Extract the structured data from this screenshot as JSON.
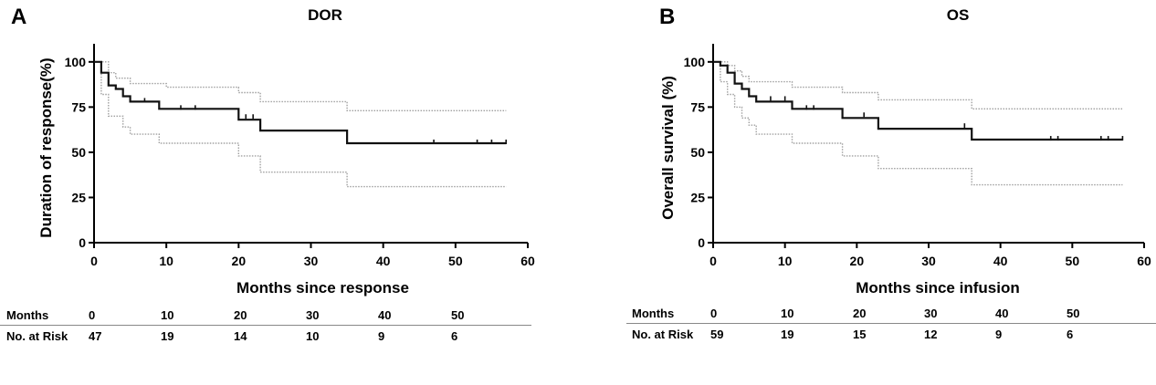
{
  "chart_data": [
    {
      "panel_letter": "A",
      "type": "line",
      "subtype": "kaplan-meier",
      "title": "DOR",
      "xlabel": "Months since response",
      "ylabel": "Duration of response(%)",
      "xlim": [
        0,
        60
      ],
      "ylim": [
        0,
        110
      ],
      "xticks": [
        0,
        10,
        20,
        30,
        40,
        50,
        60
      ],
      "yticks": [
        0,
        25,
        50,
        75,
        100
      ],
      "estimate": [
        [
          0,
          100
        ],
        [
          1,
          100
        ],
        [
          1,
          94
        ],
        [
          2,
          94
        ],
        [
          2,
          87
        ],
        [
          3,
          87
        ],
        [
          3,
          85
        ],
        [
          4,
          85
        ],
        [
          4,
          81
        ],
        [
          5,
          81
        ],
        [
          5,
          78
        ],
        [
          9,
          78
        ],
        [
          9,
          74
        ],
        [
          20,
          74
        ],
        [
          20,
          68
        ],
        [
          23,
          68
        ],
        [
          23,
          62
        ],
        [
          35,
          62
        ],
        [
          35,
          55
        ],
        [
          57,
          55
        ]
      ],
      "upper_ci": [
        [
          0,
          100
        ],
        [
          2,
          100
        ],
        [
          2,
          94
        ],
        [
          3,
          94
        ],
        [
          3,
          91
        ],
        [
          5,
          91
        ],
        [
          5,
          88
        ],
        [
          10,
          88
        ],
        [
          10,
          86
        ],
        [
          20,
          86
        ],
        [
          20,
          83
        ],
        [
          23,
          83
        ],
        [
          23,
          78
        ],
        [
          35,
          78
        ],
        [
          35,
          73
        ],
        [
          57,
          73
        ]
      ],
      "lower_ci": [
        [
          0,
          100
        ],
        [
          1,
          100
        ],
        [
          1,
          82
        ],
        [
          2,
          82
        ],
        [
          2,
          70
        ],
        [
          4,
          70
        ],
        [
          4,
          64
        ],
        [
          5,
          64
        ],
        [
          5,
          60
        ],
        [
          9,
          60
        ],
        [
          9,
          55
        ],
        [
          20,
          55
        ],
        [
          20,
          48
        ],
        [
          23,
          48
        ],
        [
          23,
          39
        ],
        [
          35,
          39
        ],
        [
          35,
          31
        ],
        [
          57,
          31
        ]
      ],
      "censor_marks": [
        [
          7,
          78
        ],
        [
          12,
          74
        ],
        [
          14,
          74
        ],
        [
          21,
          69
        ],
        [
          22,
          69
        ],
        [
          47,
          55
        ],
        [
          53,
          55
        ],
        [
          55,
          55
        ],
        [
          57,
          55
        ]
      ],
      "risk_table": {
        "header_label": "Months",
        "row_label": "No. at Risk",
        "months": [
          "0",
          "10",
          "20",
          "30",
          "40",
          "50"
        ],
        "at_risk": [
          "47",
          "19",
          "14",
          "10",
          "9",
          "6"
        ]
      }
    },
    {
      "panel_letter": "B",
      "type": "line",
      "subtype": "kaplan-meier",
      "title": "OS",
      "xlabel": "Months since infusion",
      "ylabel": "Overall survival (%)",
      "xlim": [
        0,
        60
      ],
      "ylim": [
        0,
        110
      ],
      "xticks": [
        0,
        10,
        20,
        30,
        40,
        50,
        60
      ],
      "yticks": [
        0,
        25,
        50,
        75,
        100
      ],
      "estimate": [
        [
          0,
          100
        ],
        [
          1,
          100
        ],
        [
          1,
          98
        ],
        [
          2,
          98
        ],
        [
          2,
          94
        ],
        [
          3,
          94
        ],
        [
          3,
          88
        ],
        [
          4,
          88
        ],
        [
          4,
          85
        ],
        [
          5,
          85
        ],
        [
          5,
          81
        ],
        [
          6,
          81
        ],
        [
          6,
          78
        ],
        [
          11,
          78
        ],
        [
          11,
          74
        ],
        [
          18,
          74
        ],
        [
          18,
          69
        ],
        [
          23,
          69
        ],
        [
          23,
          63
        ],
        [
          36,
          63
        ],
        [
          36,
          57
        ],
        [
          57,
          57
        ]
      ],
      "upper_ci": [
        [
          0,
          100
        ],
        [
          2,
          100
        ],
        [
          2,
          98
        ],
        [
          3,
          98
        ],
        [
          3,
          95
        ],
        [
          4,
          95
        ],
        [
          4,
          92
        ],
        [
          5,
          92
        ],
        [
          5,
          89
        ],
        [
          11,
          89
        ],
        [
          11,
          86
        ],
        [
          18,
          86
        ],
        [
          18,
          83
        ],
        [
          23,
          83
        ],
        [
          23,
          79
        ],
        [
          36,
          79
        ],
        [
          36,
          74
        ],
        [
          57,
          74
        ]
      ],
      "lower_ci": [
        [
          0,
          100
        ],
        [
          1,
          100
        ],
        [
          1,
          89
        ],
        [
          2,
          89
        ],
        [
          2,
          82
        ],
        [
          3,
          82
        ],
        [
          3,
          75
        ],
        [
          4,
          75
        ],
        [
          4,
          69
        ],
        [
          5,
          69
        ],
        [
          5,
          65
        ],
        [
          6,
          65
        ],
        [
          6,
          60
        ],
        [
          11,
          60
        ],
        [
          11,
          55
        ],
        [
          18,
          55
        ],
        [
          18,
          48
        ],
        [
          23,
          48
        ],
        [
          23,
          41
        ],
        [
          36,
          41
        ],
        [
          36,
          32
        ],
        [
          57,
          32
        ]
      ],
      "censor_marks": [
        [
          8,
          79
        ],
        [
          10,
          79
        ],
        [
          13,
          74
        ],
        [
          14,
          74
        ],
        [
          21,
          70
        ],
        [
          35,
          64
        ],
        [
          47,
          57
        ],
        [
          48,
          57
        ],
        [
          54,
          57
        ],
        [
          55,
          57
        ],
        [
          57,
          57
        ]
      ],
      "risk_table": {
        "header_label": "Months",
        "row_label": "No. at Risk",
        "months": [
          "0",
          "10",
          "20",
          "30",
          "40",
          "50"
        ],
        "at_risk": [
          "59",
          "19",
          "15",
          "12",
          "9",
          "6"
        ]
      }
    }
  ],
  "colors": {
    "estimate_line": "#111111",
    "ci_line": "#a0a0a0",
    "axis": "#000000"
  }
}
